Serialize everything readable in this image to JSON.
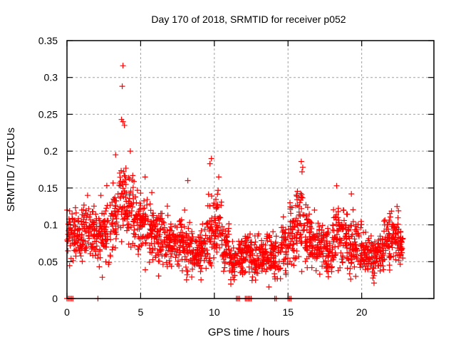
{
  "chart_data": {
    "type": "scatter",
    "title": "Day 170 of 2018, SRMTID for receiver p052",
    "xlabel": "GPS time / hours",
    "ylabel": "SRMTID / TECUs",
    "xlim": [
      0,
      24.9
    ],
    "ylim": [
      0,
      0.35
    ],
    "xticks": [
      0,
      5,
      10,
      15,
      20
    ],
    "xtick_labels": [
      "0",
      "5",
      "10",
      "15",
      "20"
    ],
    "yticks": [
      0,
      0.05,
      0.1,
      0.15,
      0.2,
      0.25,
      0.3,
      0.35
    ],
    "ytick_labels": [
      "0",
      "0.05",
      "0.1",
      "0.15",
      "0.2",
      "0.25",
      "0.3",
      "0.35"
    ],
    "grid": true,
    "legend": "none",
    "marker": "plus",
    "series_color": "#ff0000",
    "series": [
      {
        "name": "SRMTID",
        "note": "approximate envelope per 0.5 h bin: [hour, typical, spread, max]",
        "bins": [
          [
            0.25,
            0.085,
            0.025,
            0.12
          ],
          [
            0.75,
            0.085,
            0.025,
            0.125
          ],
          [
            1.25,
            0.09,
            0.025,
            0.13
          ],
          [
            1.75,
            0.09,
            0.025,
            0.135
          ],
          [
            2.25,
            0.085,
            0.03,
            0.135
          ],
          [
            2.75,
            0.09,
            0.03,
            0.16
          ],
          [
            3.25,
            0.11,
            0.035,
            0.2
          ],
          [
            3.75,
            0.13,
            0.04,
            0.245
          ],
          [
            4.25,
            0.12,
            0.035,
            0.2
          ],
          [
            4.75,
            0.105,
            0.03,
            0.165
          ],
          [
            5.25,
            0.1,
            0.03,
            0.15
          ],
          [
            5.75,
            0.09,
            0.03,
            0.145
          ],
          [
            6.25,
            0.085,
            0.03,
            0.14
          ],
          [
            6.75,
            0.08,
            0.025,
            0.13
          ],
          [
            7.25,
            0.08,
            0.025,
            0.125
          ],
          [
            7.75,
            0.075,
            0.025,
            0.12
          ],
          [
            8.25,
            0.07,
            0.025,
            0.16
          ],
          [
            8.75,
            0.06,
            0.02,
            0.1
          ],
          [
            9.25,
            0.065,
            0.025,
            0.11
          ],
          [
            9.75,
            0.1,
            0.035,
            0.19
          ],
          [
            10.25,
            0.105,
            0.03,
            0.165
          ],
          [
            10.75,
            0.07,
            0.025,
            0.12
          ],
          [
            11.25,
            0.05,
            0.02,
            0.085
          ],
          [
            11.75,
            0.055,
            0.02,
            0.09
          ],
          [
            12.25,
            0.06,
            0.02,
            0.09
          ],
          [
            12.75,
            0.055,
            0.02,
            0.085
          ],
          [
            13.25,
            0.055,
            0.02,
            0.09
          ],
          [
            13.75,
            0.06,
            0.02,
            0.095
          ],
          [
            14.25,
            0.055,
            0.02,
            0.09
          ],
          [
            14.75,
            0.07,
            0.025,
            0.12
          ],
          [
            15.25,
            0.085,
            0.03,
            0.13
          ],
          [
            15.75,
            0.11,
            0.04,
            0.185
          ],
          [
            16.25,
            0.085,
            0.03,
            0.14
          ],
          [
            16.75,
            0.075,
            0.025,
            0.12
          ],
          [
            17.25,
            0.07,
            0.025,
            0.11
          ],
          [
            17.75,
            0.065,
            0.025,
            0.11
          ],
          [
            18.25,
            0.09,
            0.03,
            0.155
          ],
          [
            18.75,
            0.08,
            0.03,
            0.12
          ],
          [
            19.25,
            0.075,
            0.03,
            0.145
          ],
          [
            19.75,
            0.07,
            0.03,
            0.12
          ],
          [
            20.25,
            0.06,
            0.02,
            0.09
          ],
          [
            20.75,
            0.06,
            0.02,
            0.085
          ],
          [
            21.25,
            0.065,
            0.02,
            0.1
          ],
          [
            21.75,
            0.08,
            0.025,
            0.13
          ],
          [
            22.25,
            0.085,
            0.025,
            0.125
          ],
          [
            22.75,
            0.07,
            0.02,
            0.095
          ]
        ],
        "peaks": [
          [
            3.8,
            0.316
          ],
          [
            3.75,
            0.288
          ],
          [
            3.7,
            0.243
          ],
          [
            3.8,
            0.24
          ],
          [
            3.9,
            0.235
          ],
          [
            3.3,
            0.195
          ],
          [
            4.3,
            0.2
          ],
          [
            9.8,
            0.19
          ],
          [
            9.7,
            0.183
          ],
          [
            15.9,
            0.186
          ],
          [
            16.0,
            0.178
          ],
          [
            15.95,
            0.172
          ],
          [
            18.3,
            0.153
          ],
          [
            19.3,
            0.142
          ],
          [
            8.2,
            0.16
          ],
          [
            5.3,
            0.165
          ],
          [
            10.3,
            0.165
          ],
          [
            22.4,
            0.125
          ],
          [
            1.4,
            0.14
          ],
          [
            2.3,
            0.14
          ]
        ],
        "zero_values_hours": [
          0.0,
          0.1,
          0.2,
          0.3,
          0.4,
          2.1,
          11.5,
          11.6,
          11.7,
          12.1,
          12.2,
          12.3,
          12.4,
          12.5,
          14.1,
          14.2,
          15.0,
          15.1,
          15.2
        ],
        "x_end_hours": 22.8
      }
    ]
  }
}
